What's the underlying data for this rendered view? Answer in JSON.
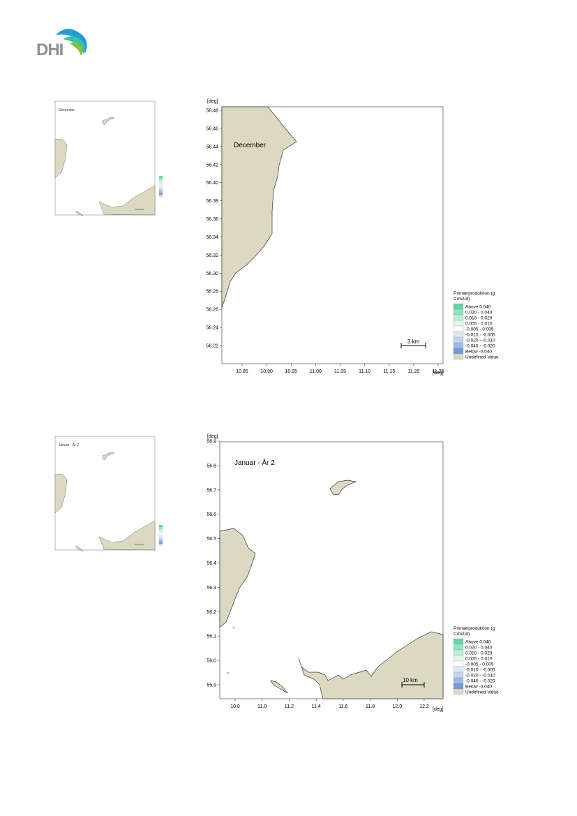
{
  "logo": {
    "text": "DHI",
    "icon": "wave-logo-icon",
    "colors": [
      "#1f9bd7",
      "#3cc0a8",
      "#7cc142"
    ]
  },
  "land_color": "#dcd9c2",
  "legend": {
    "title": "Primærproduktion (g C/m2/d)",
    "entries": [
      {
        "label": "Above 0.040",
        "color": "#5fd6a3"
      },
      {
        "label": "0.020 - 0.040",
        "color": "#8fe3bd"
      },
      {
        "label": "0.010 - 0.020",
        "color": "#b9eed4"
      },
      {
        "label": "0.005 - 0.010",
        "color": "#def7ea"
      },
      {
        "label": "-0.005 - 0.005",
        "color": "#ffffff"
      },
      {
        "label": "-0.010 - -0.005",
        "color": "#dfe7f6"
      },
      {
        "label": "-0.020 - -0.010",
        "color": "#c2d2ef"
      },
      {
        "label": "-0.040 - -0.020",
        "color": "#9fb9e6"
      },
      {
        "label": "Below -0.040",
        "color": "#6f99dc"
      },
      {
        "label": "Undefined Value",
        "color": "#dcd9c2"
      }
    ]
  },
  "maps": [
    {
      "title": "December",
      "y_unit": "[deg]",
      "x_unit": "[deg]",
      "y_ticks": [
        "56.48",
        "56.46",
        "56.44",
        "56.42",
        "56.40",
        "56.38",
        "56.36",
        "56.34",
        "56.32",
        "56.30",
        "56.28",
        "56.26",
        "56.24",
        "56.22"
      ],
      "x_ticks": [
        "10.85",
        "10.90",
        "10.95",
        "11.00",
        "11.05",
        "11.10",
        "11.15",
        "11.20",
        "11.25"
      ],
      "scale_bar": "3 km",
      "thumbnail_title": "December"
    },
    {
      "title": "Januar - År 2",
      "y_unit": "[deg]",
      "x_unit": "[deg]",
      "y_ticks": [
        "56.9",
        "56.8",
        "56.7",
        "56.6",
        "56.5",
        "56.4",
        "56.3",
        "56.2",
        "56.1",
        "56.0",
        "55.9"
      ],
      "x_ticks": [
        "10.8",
        "11.0",
        "11.2",
        "11.4",
        "11.6",
        "11.8",
        "12.0",
        "12.2"
      ],
      "scale_bar": "10 km",
      "thumbnail_title": "Januar - År 2"
    }
  ]
}
